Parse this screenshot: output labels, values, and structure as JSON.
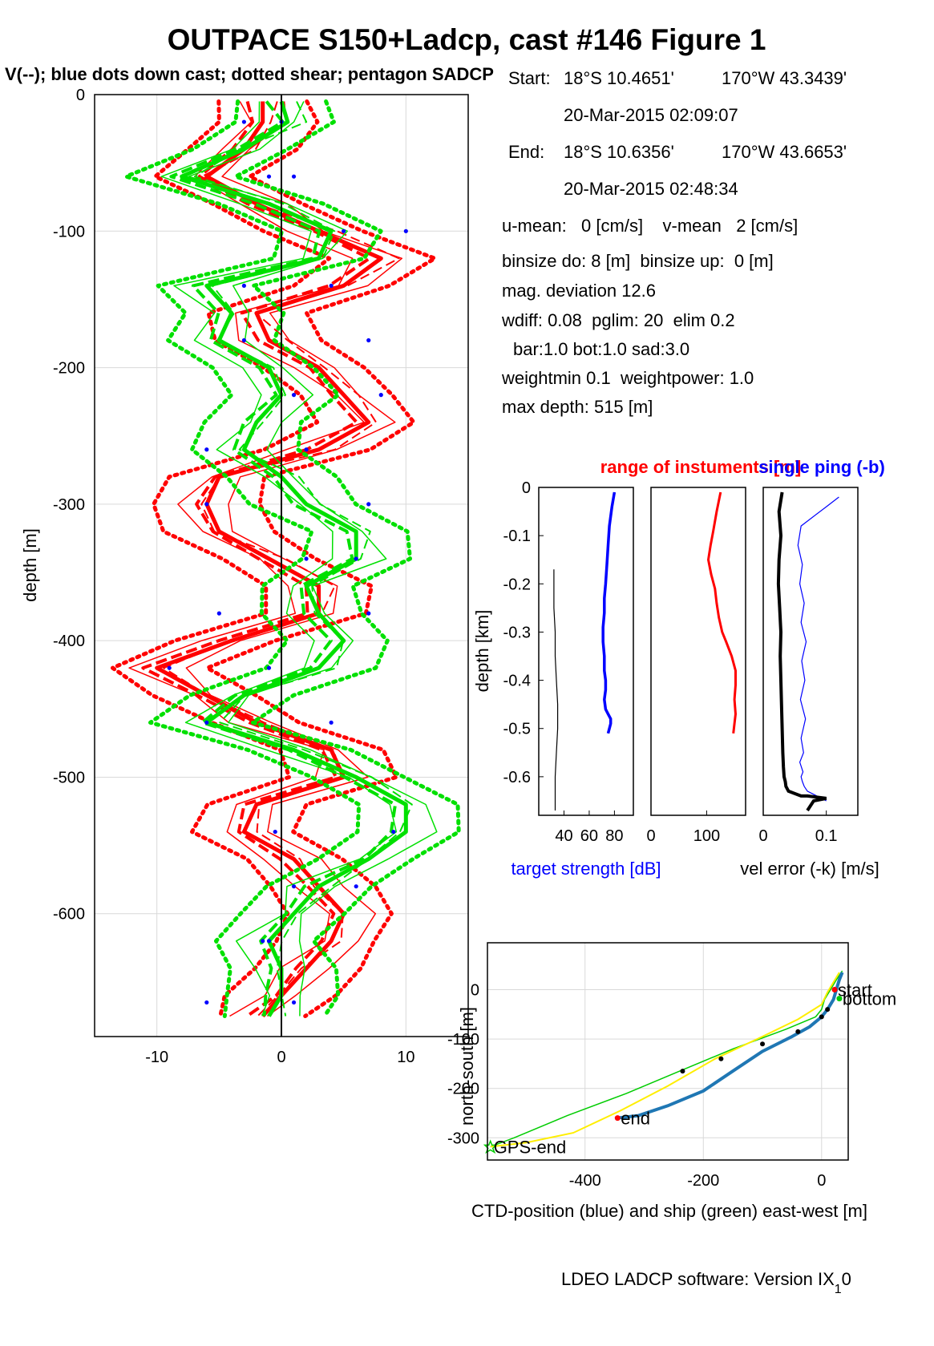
{
  "figure": {
    "title": "OUTPACE S150+Ladcp, cast #146  Figure 1",
    "subtitle": "V(--); blue dots down cast; dotted shear; pentagon SADCP",
    "footer": "LDEO LADCP software: Version IX",
    "footer_sub": "1",
    "footer_tail": "0"
  },
  "info": {
    "start_label": "Start:",
    "start_lat": "18°S 10.4651'",
    "start_lon": "170°W 43.3439'",
    "start_time": "20-Mar-2015 02:09:07",
    "end_label": "End:",
    "end_lat": "18°S 10.6356'",
    "end_lon": "170°W 43.6653'",
    "end_time": "20-Mar-2015 02:48:34",
    "umean": "u-mean:   0 [cm/s]    v-mean   2 [cm/s]",
    "binsize": "binsize do: 8 [m]  binsize up:  0 [m]",
    "magdev": "mag. deviation 12.6",
    "wdiff": "wdiff: 0.08  pglim: 20  elim 0.2",
    "bar": "bar:1.0 bot:1.0 sad:3.0",
    "weight": "weightmin 0.1  weightpower: 1.0",
    "maxdepth": "max depth: 515 [m]"
  },
  "colors": {
    "u": "#ff0000",
    "v": "#00e000",
    "down_dots": "#0000ff",
    "target": "#0000ff",
    "range": "#ff0000",
    "velerr": "#000000",
    "singleping": "#0000ff",
    "ctd_track": "#1f77b4",
    "ship_track": "#00cc00",
    "yellow_track": "#ffee00",
    "grid": "#d9d9d9"
  },
  "chart_data": [
    {
      "type": "line",
      "panel": "velocity-profile",
      "xlabel": "",
      "ylabel": "depth [m]",
      "xlim": [
        -15,
        15
      ],
      "ylim": [
        -690,
        0
      ],
      "xticks": [
        "-10",
        "0",
        "10"
      ],
      "yticks": [
        "0",
        "-100",
        "-200",
        "-300",
        "-400",
        "-500",
        "-600"
      ],
      "grid": true,
      "depth": [
        -5,
        -20,
        -40,
        -60,
        -80,
        -100,
        -120,
        -140,
        -160,
        -180,
        -200,
        -220,
        -240,
        -260,
        -280,
        -300,
        -320,
        -340,
        -360,
        -380,
        -400,
        -420,
        -440,
        -460,
        -480,
        -500,
        -520,
        -540,
        -560,
        -580,
        -600,
        -620,
        -640,
        -660,
        -675
      ],
      "series": [
        {
          "values": [
            -1.5,
            -1.5,
            -3,
            -6,
            -2,
            3,
            8,
            5,
            -2,
            -1,
            3,
            5,
            7,
            3,
            -5,
            -6,
            -5,
            -1,
            3,
            3,
            -4,
            -10,
            -6,
            -2,
            4,
            5,
            -2,
            -3,
            1,
            3,
            5,
            4,
            2,
            0,
            -1.5
          ]
        },
        {
          "values": [
            0,
            0.5,
            -3,
            -8,
            -1,
            4,
            3,
            -6,
            -4,
            -5,
            -1,
            0,
            -2,
            -3,
            0,
            2,
            6,
            6,
            2,
            3,
            5,
            3,
            -3,
            -6,
            1,
            6,
            10,
            10,
            7,
            3,
            1,
            -1,
            0,
            0,
            -1
          ]
        }
      ],
      "down_cast_dots": [
        {
          "depth": -20,
          "u": -3,
          "v": 0
        },
        {
          "depth": -60,
          "u": -1,
          "v": 1
        },
        {
          "depth": -100,
          "u": 5,
          "v": 10
        },
        {
          "depth": -140,
          "u": -3,
          "v": 4
        },
        {
          "depth": -180,
          "u": -3,
          "v": 7
        },
        {
          "depth": -220,
          "u": 1,
          "v": 8
        },
        {
          "depth": -260,
          "u": -6,
          "v": 2
        },
        {
          "depth": -300,
          "u": -6,
          "v": 7
        },
        {
          "depth": -340,
          "u": 2,
          "v": 6
        },
        {
          "depth": -380,
          "u": -5,
          "v": 7
        },
        {
          "depth": -420,
          "u": -9,
          "v": -1
        },
        {
          "depth": -460,
          "u": -6,
          "v": 4
        },
        {
          "depth": -540,
          "u": -0.5,
          "v": 9
        },
        {
          "depth": -580,
          "u": 1,
          "v": 6
        },
        {
          "depth": -620,
          "u": -1.5,
          "v": -1
        },
        {
          "depth": -665,
          "u": -6,
          "v": 1
        }
      ]
    },
    {
      "type": "line",
      "panel": "target-strength",
      "title": "range of instuments [m]",
      "xlabel": "target strength [dB]",
      "ylabel": "depth [km]",
      "xlim": [
        20,
        95
      ],
      "ylim": [
        -0.68,
        0
      ],
      "xticks": [
        "40",
        "60",
        "80"
      ],
      "yticks": [
        "0",
        "-0.1",
        "-0.2",
        "-0.3",
        "-0.4",
        "-0.5",
        "-0.6"
      ],
      "series": [
        {
          "x": [
            80,
            78,
            76,
            75,
            74,
            73,
            72,
            72,
            71,
            71,
            72,
            72,
            73,
            73,
            72,
            73,
            75,
            77,
            77,
            75
          ],
          "y": [
            -0.01,
            -0.04,
            -0.08,
            -0.12,
            -0.16,
            -0.2,
            -0.23,
            -0.26,
            -0.29,
            -0.32,
            -0.35,
            -0.38,
            -0.4,
            -0.42,
            -0.44,
            -0.46,
            -0.47,
            -0.48,
            -0.49,
            -0.51
          ]
        },
        {
          "x": [
            32,
            32,
            33,
            33,
            34,
            35,
            35,
            34,
            33,
            33
          ],
          "y": [
            -0.17,
            -0.25,
            -0.3,
            -0.35,
            -0.4,
            -0.45,
            -0.5,
            -0.55,
            -0.6,
            -0.67
          ]
        }
      ]
    },
    {
      "type": "line",
      "panel": "range",
      "xlabel": "",
      "ylabel": "",
      "xlim": [
        0,
        170
      ],
      "ylim": [
        -0.68,
        0
      ],
      "xticks": [
        "0",
        "100"
      ],
      "series": [
        {
          "x": [
            125,
            118,
            112,
            107,
            103,
            108,
            115,
            118,
            122,
            128,
            135,
            145,
            152,
            152,
            150,
            152,
            150,
            148
          ],
          "y": [
            -0.01,
            -0.05,
            -0.09,
            -0.12,
            -0.15,
            -0.18,
            -0.21,
            -0.24,
            -0.27,
            -0.3,
            -0.32,
            -0.35,
            -0.38,
            -0.41,
            -0.44,
            -0.47,
            -0.49,
            -0.51
          ]
        }
      ]
    },
    {
      "type": "line",
      "panel": "velocity-error",
      "title": "single ping (-b)",
      "xlabel": "vel error (-k) [m/s]",
      "xlim": [
        0,
        0.15
      ],
      "ylim": [
        -0.68,
        0
      ],
      "xticks": [
        "0",
        "0.1"
      ],
      "series": [
        {
          "name": "vel error (-k)",
          "x": [
            0.03,
            0.025,
            0.028,
            0.025,
            0.024,
            0.026,
            0.028,
            0.027,
            0.028,
            0.029,
            0.03,
            0.031,
            0.032,
            0.033,
            0.035,
            0.036,
            0.04,
            0.05,
            0.06,
            0.07,
            0.1,
            0.08,
            0.075,
            0.07
          ],
          "y": [
            -0.01,
            -0.05,
            -0.1,
            -0.15,
            -0.2,
            -0.25,
            -0.3,
            -0.35,
            -0.4,
            -0.45,
            -0.5,
            -0.55,
            -0.58,
            -0.6,
            -0.61,
            -0.62,
            -0.63,
            -0.635,
            -0.64,
            -0.64,
            -0.645,
            -0.65,
            -0.66,
            -0.67
          ]
        },
        {
          "name": "single ping (-b)",
          "x": [
            0.12,
            0.1,
            0.06,
            0.055,
            0.062,
            0.058,
            0.065,
            0.06,
            0.068,
            0.061,
            0.066,
            0.059,
            0.067,
            0.06,
            0.064,
            0.058,
            0.063,
            0.06,
            0.062,
            0.065,
            0.07,
            0.085,
            0.1
          ],
          "y": [
            -0.02,
            -0.04,
            -0.08,
            -0.12,
            -0.16,
            -0.2,
            -0.24,
            -0.28,
            -0.32,
            -0.36,
            -0.4,
            -0.44,
            -0.48,
            -0.52,
            -0.55,
            -0.57,
            -0.59,
            -0.6,
            -0.61,
            -0.62,
            -0.63,
            -0.64,
            -0.65
          ]
        }
      ]
    },
    {
      "type": "line",
      "panel": "track",
      "xlabel": "CTD-position (blue) and ship (green) east-west [m]",
      "ylabel": "north-south [m]",
      "xlim": [
        -565,
        45
      ],
      "ylim": [
        -345,
        95
      ],
      "xticks": [
        "-400",
        "-200",
        "0"
      ],
      "yticks": [
        "0",
        "-100",
        "-200",
        "-300"
      ],
      "grid": true,
      "series": [
        {
          "name": "CTD",
          "x": [
            35,
            30,
            25,
            20,
            10,
            0,
            -20,
            -50,
            -100,
            -150,
            -200,
            -260,
            -310,
            -345
          ],
          "y": [
            35,
            20,
            0,
            -20,
            -40,
            -55,
            -75,
            -95,
            -125,
            -165,
            -205,
            -235,
            -255,
            -260
          ]
        },
        {
          "name": "ship",
          "x": [
            35,
            25,
            15,
            5,
            0,
            -10,
            -60,
            -150,
            -240,
            -330,
            -430,
            -520,
            -560
          ],
          "y": [
            38,
            20,
            0,
            -20,
            -40,
            -55,
            -80,
            -120,
            -165,
            -210,
            -255,
            -300,
            -318
          ]
        },
        {
          "name": "yellow",
          "x": [
            30,
            20,
            10,
            0,
            -40,
            -100,
            -180,
            -260,
            -340,
            -420,
            -500,
            -560
          ],
          "y": [
            35,
            15,
            -5,
            -30,
            -60,
            -95,
            -140,
            -195,
            -245,
            -290,
            -310,
            -318
          ]
        }
      ],
      "markers": [
        {
          "label": "start",
          "x": 22,
          "y": 0
        },
        {
          "label": "bottom",
          "x": 30,
          "y": -18
        },
        {
          "label": "end",
          "x": -345,
          "y": -260
        },
        {
          "label": "GPS-end",
          "x": -560,
          "y": -318
        }
      ],
      "black_dots": [
        [
          10,
          -40
        ],
        [
          0,
          -55
        ],
        [
          -40,
          -85
        ],
        [
          -100,
          -110
        ],
        [
          -170,
          -140
        ],
        [
          -235,
          -165
        ]
      ]
    }
  ]
}
